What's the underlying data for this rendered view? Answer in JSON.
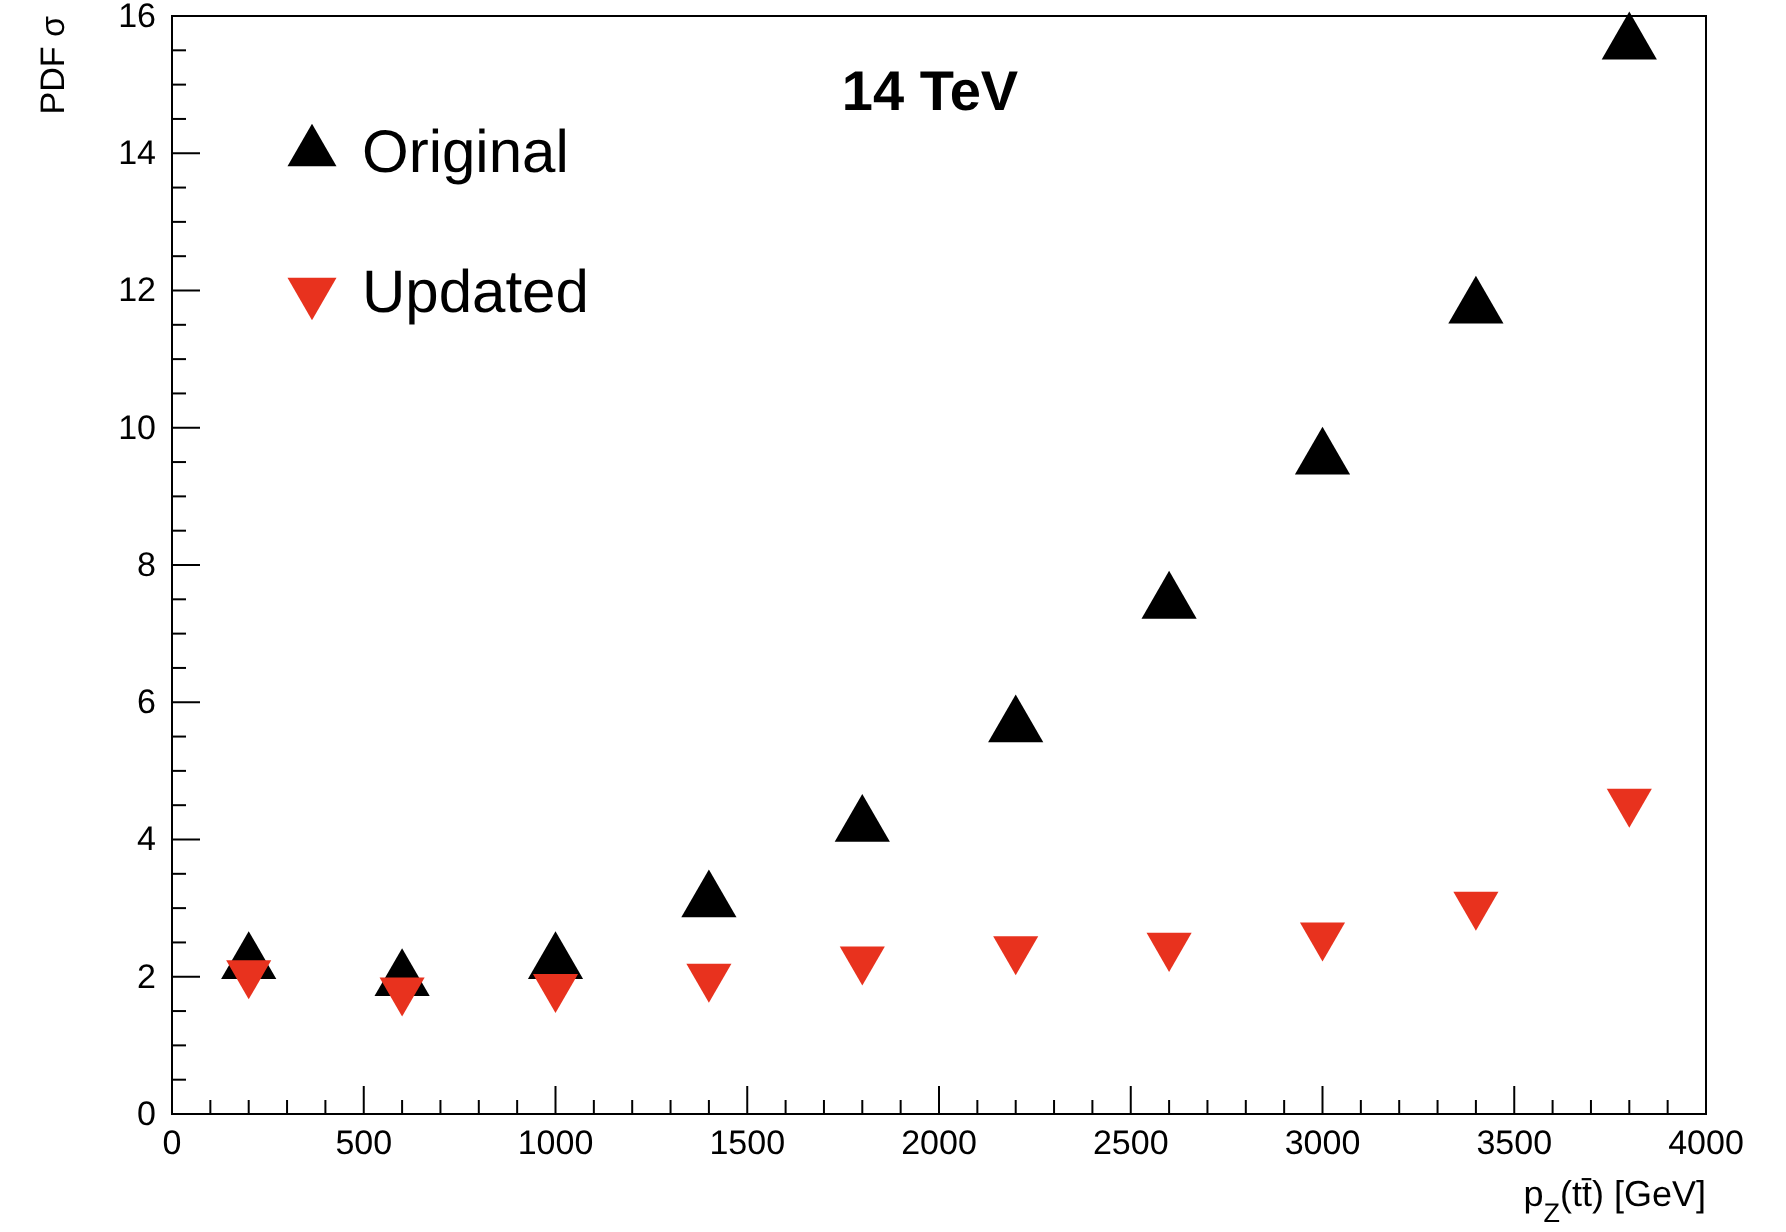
{
  "chart_data": {
    "type": "scatter",
    "title": "14 TeV",
    "xlabel": "p$_{Z}$(tt̄) [GeV]",
    "ylabel": "PDF σ",
    "x": [
      200,
      600,
      1000,
      1400,
      1800,
      2200,
      2600,
      3000,
      3400,
      3800
    ],
    "series": [
      {
        "name": "Original",
        "color": "#000000",
        "marker": "triangle",
        "values": [
          2.2,
          1.95,
          2.2,
          3.1,
          4.2,
          5.65,
          7.45,
          9.55,
          11.75,
          15.6
        ]
      },
      {
        "name": "Updated",
        "color": "#e8321e",
        "marker": "triangle-down",
        "values": [
          2.05,
          1.8,
          1.85,
          2.0,
          2.25,
          2.4,
          2.45,
          2.6,
          3.05,
          4.55
        ]
      }
    ],
    "xlim": [
      0,
      4000
    ],
    "xticks": [
      0,
      500,
      1000,
      1500,
      2000,
      2500,
      3000,
      3500,
      4000
    ],
    "ylim": [
      0,
      16
    ],
    "yticks": [
      0,
      2,
      4,
      6,
      8,
      10,
      12,
      14,
      16
    ],
    "grid": false,
    "legend": "top left"
  }
}
